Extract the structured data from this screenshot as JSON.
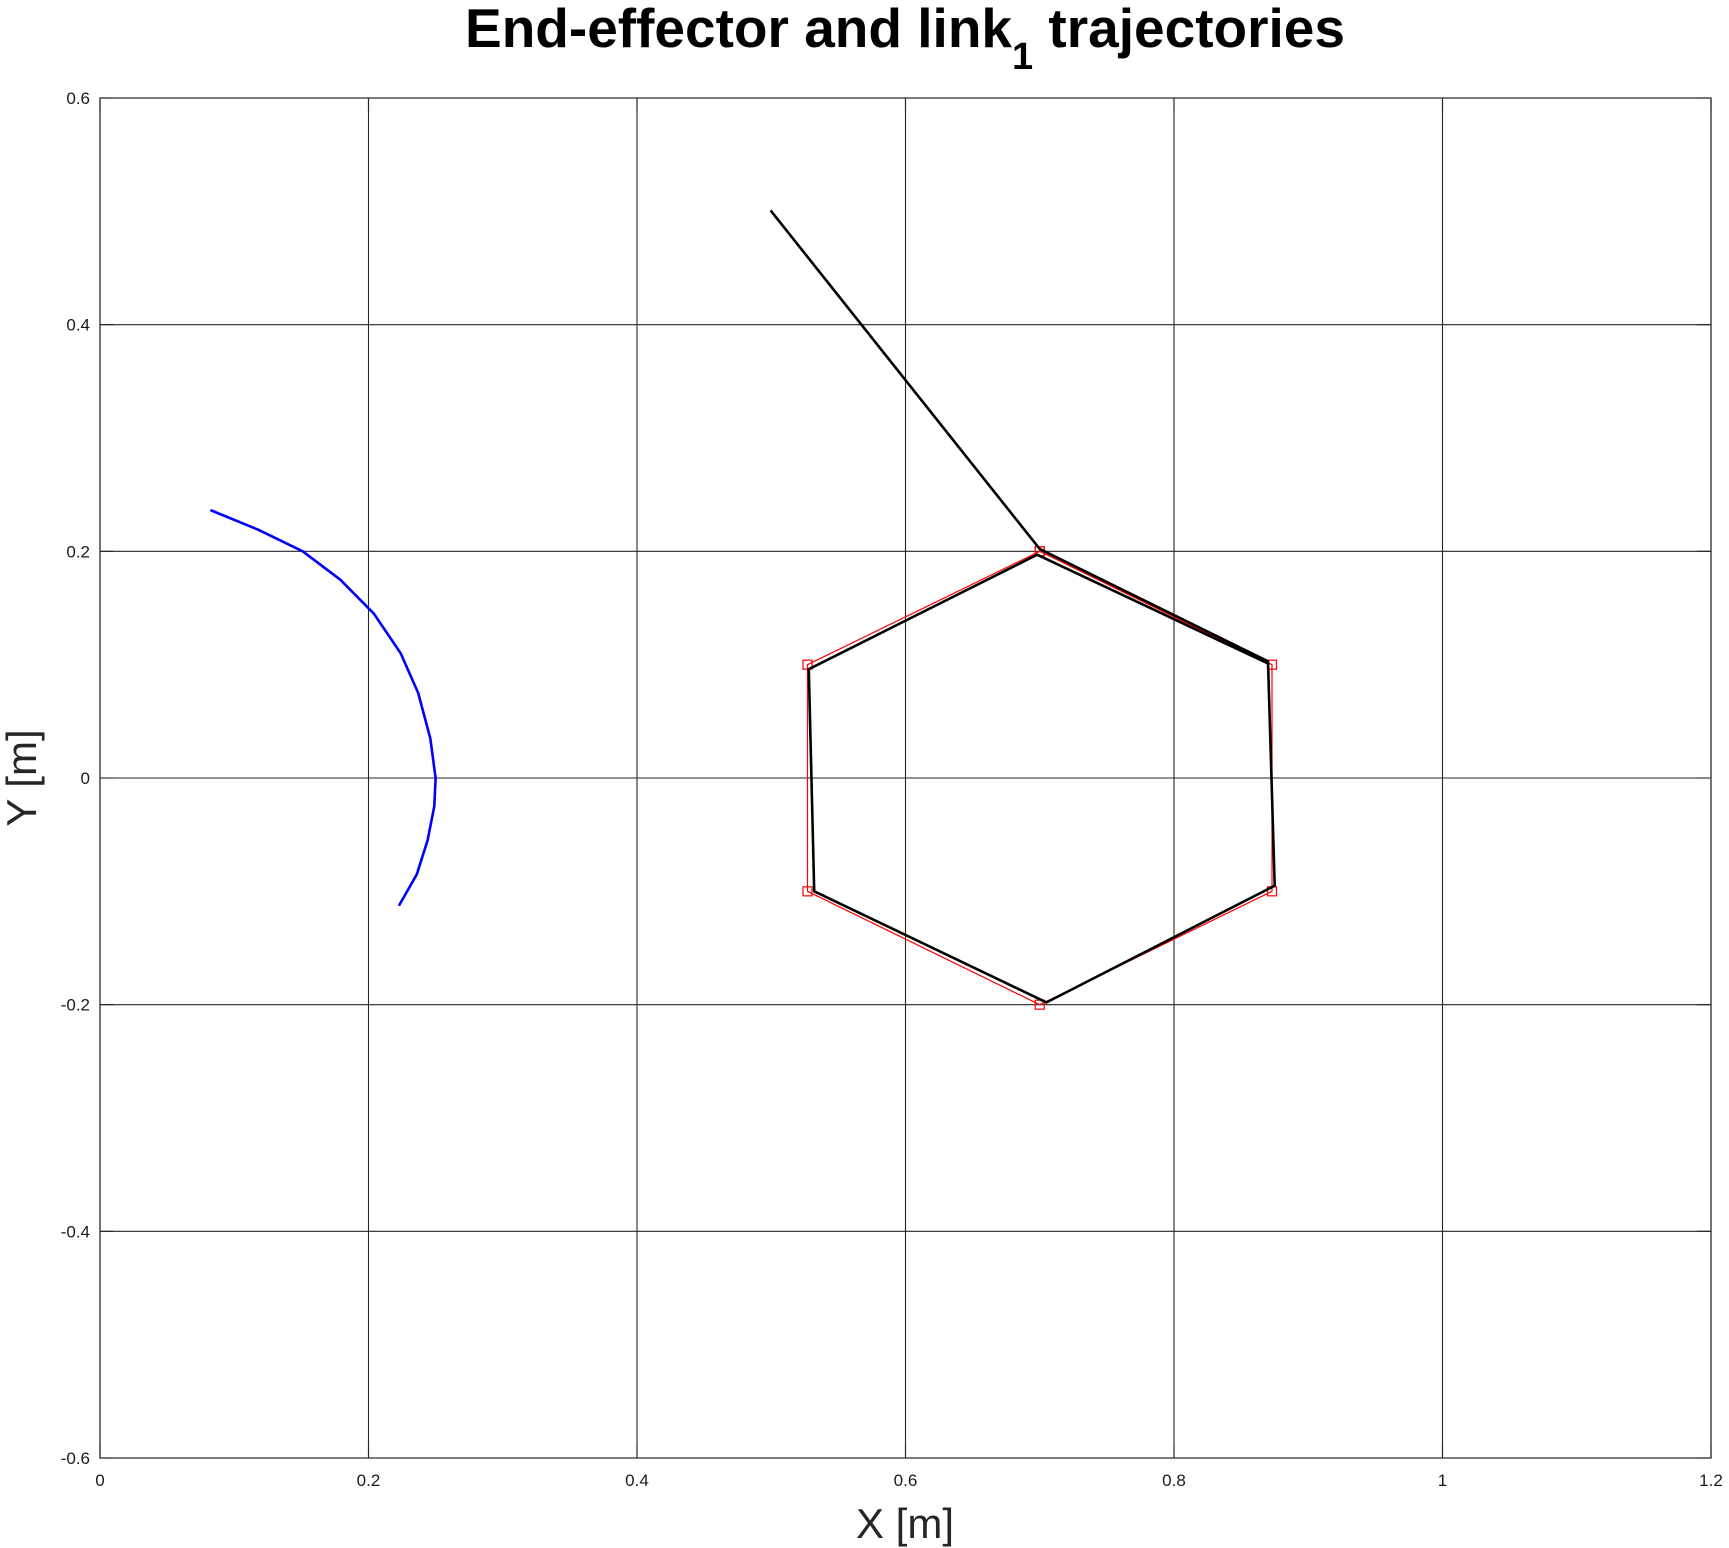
{
  "chart_data": {
    "type": "line",
    "title": "End-effector and link",
    "title_subscript": "1",
    "title_suffix": " trajectories",
    "xlabel": "X [m]",
    "ylabel": "Y [m]",
    "xlim": [
      0,
      1.2
    ],
    "ylim": [
      -0.6,
      0.6
    ],
    "xticks": [
      0,
      0.2,
      0.4,
      0.6,
      0.8,
      1,
      1.2
    ],
    "xtick_labels": [
      "0",
      "0.2",
      "0.4",
      "0.6",
      "0.8",
      "1",
      "1.2"
    ],
    "yticks": [
      -0.6,
      -0.4,
      -0.2,
      0,
      0.2,
      0.4,
      0.6
    ],
    "ytick_labels": [
      "-0.6",
      "-0.4",
      "-0.2",
      "0",
      "0.2",
      "0.4",
      "0.6"
    ],
    "grid": true,
    "series": [
      {
        "color": "#0000ff",
        "style": "line",
        "x": [
          0.083,
          0.118,
          0.151,
          0.179,
          0.204,
          0.224,
          0.237,
          0.246,
          0.25,
          0.249,
          0.244,
          0.236,
          0.223
        ],
        "y": [
          0.236,
          0.219,
          0.2,
          0.175,
          0.145,
          0.11,
          0.075,
          0.035,
          0.0,
          -0.025,
          -0.055,
          -0.085,
          -0.112
        ]
      },
      {
        "color": "#ff0000",
        "style": "line-square-markers",
        "x": [
          0.7,
          0.873,
          0.873,
          0.7,
          0.527,
          0.527,
          0.7
        ],
        "y": [
          0.2,
          0.1,
          -0.1,
          -0.2,
          -0.1,
          0.1,
          0.2
        ]
      },
      {
        "color": "#000000",
        "style": "line",
        "x": [
          0.5,
          0.7,
          0.87,
          0.875,
          0.705,
          0.532,
          0.528,
          0.698,
          0.87
        ],
        "y": [
          0.5,
          0.202,
          0.103,
          -0.095,
          -0.198,
          -0.1,
          0.096,
          0.197,
          0.101
        ]
      }
    ]
  }
}
